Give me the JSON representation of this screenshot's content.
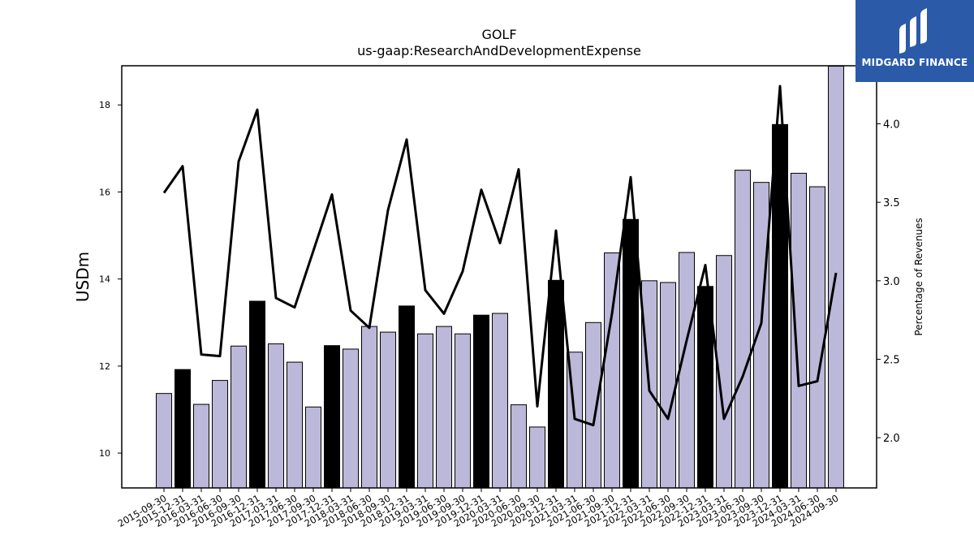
{
  "chart_data": {
    "type": "bar",
    "title": "GOLF",
    "subtitle": "us-gaap:ResearchAndDevelopmentExpense",
    "ylabel": "USDm",
    "y2label": "Percentage of Revenues",
    "ylim": [
      9.2,
      18.9
    ],
    "y2lim": [
      1.68,
      4.37
    ],
    "yticks": [
      10,
      12,
      14,
      16,
      18
    ],
    "y2ticks": [
      2.0,
      2.5,
      3.0,
      3.5,
      4.0
    ],
    "y2ticklabels": [
      "2.0",
      "2.5",
      "3.0",
      "3.5",
      "4.0"
    ],
    "categories": [
      "2015-09-30",
      "2015-12-31",
      "2016-03-31",
      "2016-06-30",
      "2016-09-30",
      "2016-12-31",
      "2017-03-31",
      "2017-06-30",
      "2017-09-30",
      "2017-12-31",
      "2018-03-31",
      "2018-06-30",
      "2018-09-30",
      "2018-12-31",
      "2019-03-31",
      "2019-06-30",
      "2019-09-30",
      "2019-12-31",
      "2020-03-31",
      "2020-06-30",
      "2020-09-30",
      "2020-12-31",
      "2021-03-31",
      "2021-06-30",
      "2021-09-30",
      "2021-12-31",
      "2022-03-31",
      "2022-06-30",
      "2022-09-30",
      "2022-12-31",
      "2023-03-31",
      "2023-06-30",
      "2023-09-30",
      "2023-12-31",
      "2024-03-31",
      "2024-06-30",
      "2024-09-30"
    ],
    "values": [
      11.37,
      11.92,
      11.12,
      11.67,
      12.46,
      13.49,
      12.51,
      12.09,
      11.06,
      12.47,
      12.39,
      12.91,
      12.78,
      13.38,
      12.74,
      12.91,
      12.74,
      13.17,
      13.21,
      11.11,
      10.6,
      13.97,
      12.32,
      13.0,
      14.6,
      15.37,
      13.96,
      13.92,
      14.61,
      13.83,
      14.54,
      16.5,
      16.22,
      17.55,
      16.43,
      16.12,
      18.89
    ],
    "highlight_indices": [
      1,
      5,
      9,
      13,
      17,
      21,
      25,
      29,
      33
    ],
    "bar_color": "#bcb8d9",
    "highlight_color": "#000000",
    "line_series": {
      "values": [
        3.56,
        3.73,
        2.53,
        2.52,
        3.76,
        4.09,
        2.89,
        2.83,
        3.19,
        3.55,
        2.81,
        2.7,
        3.45,
        3.9,
        2.94,
        2.79,
        3.06,
        3.58,
        3.24,
        3.71,
        2.2,
        3.32,
        2.12,
        2.08,
        2.79,
        3.66,
        2.3,
        2.12,
        2.62,
        3.1,
        2.12,
        2.39,
        2.73,
        4.24,
        2.33,
        2.36,
        3.05
      ],
      "color": "#000000"
    }
  },
  "logo": {
    "text": "MIDGARD FINANCE",
    "color": "#2b5aa8"
  }
}
